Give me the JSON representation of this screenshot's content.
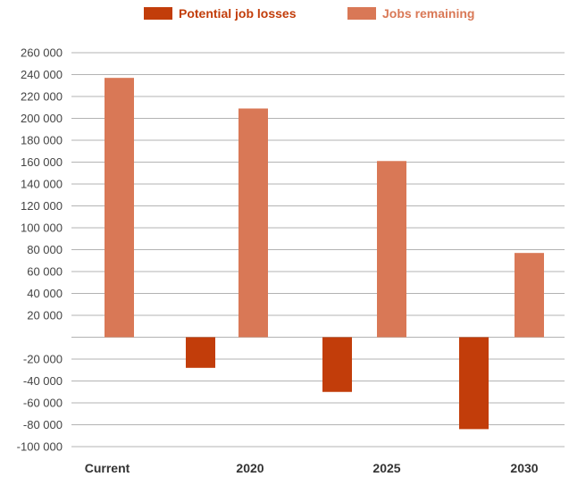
{
  "chart_data": {
    "type": "bar",
    "categories": [
      "Current",
      "2020",
      "2025",
      "2030"
    ],
    "series": [
      {
        "name": "Potential job losses",
        "color": "#c23d0a",
        "values": [
          null,
          -28000,
          -50000,
          -84000
        ]
      },
      {
        "name": "Jobs remaining",
        "color": "#d97856",
        "values": [
          237000,
          209000,
          161000,
          77000
        ]
      }
    ],
    "y_ticks": [
      "260 000",
      "240 000",
      "220 000",
      "200 000",
      "180 000",
      "160 000",
      "140 000",
      "120 000",
      "100 000",
      "80 000",
      "60 000",
      "40 000",
      "20 000",
      "",
      "-20 000",
      "-40 000",
      "-60 000",
      "-80 000",
      "-100 000"
    ],
    "ylim": [
      -100000,
      260000
    ],
    "grid": true,
    "legend_position": "top-center",
    "title": "",
    "xlabel": "",
    "ylabel": ""
  }
}
